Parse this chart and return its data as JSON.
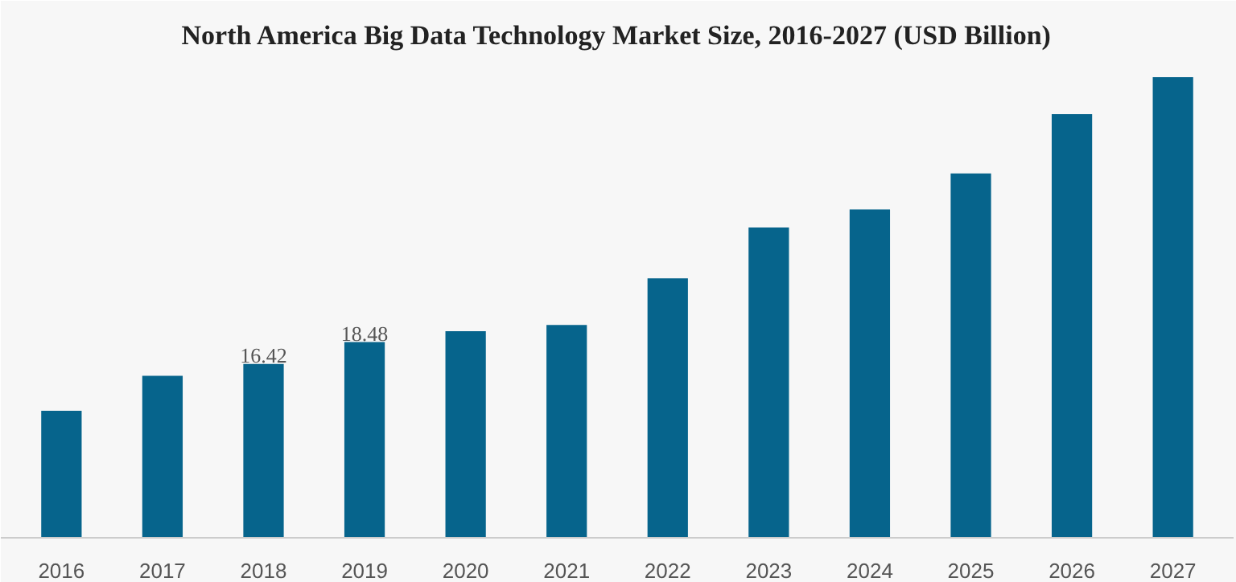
{
  "chart_data": {
    "type": "bar",
    "title": "North America Big Data Technology Market Size, 2016-2027 (USD Billion)",
    "categories": [
      "2016",
      "2017",
      "2018",
      "2019",
      "2020",
      "2021",
      "2022",
      "2023",
      "2024",
      "2025",
      "2026",
      "2027"
    ],
    "values": [
      12.0,
      15.3,
      16.42,
      18.48,
      19.5,
      20.1,
      24.5,
      29.3,
      31.0,
      34.4,
      40.0,
      43.5
    ],
    "value_labels": [
      null,
      null,
      "16.42",
      "18.48",
      null,
      null,
      null,
      null,
      null,
      null,
      null,
      null
    ],
    "color": "#06648c",
    "grid": false
  }
}
